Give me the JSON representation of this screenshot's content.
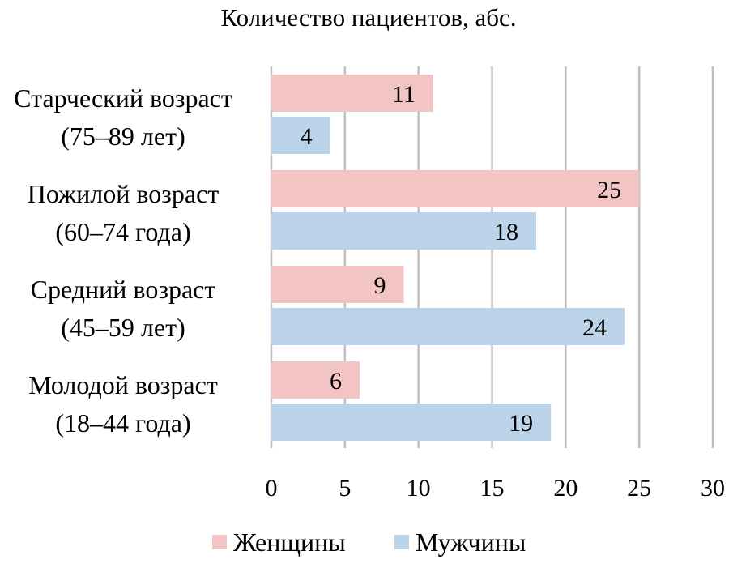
{
  "chart_data": {
    "type": "bar",
    "orientation": "horizontal",
    "title": "Количество пациентов, абс.",
    "categories": [
      [
        "Старческий возраст",
        "(75–89 лет)"
      ],
      [
        "Пожилой возраст",
        "(60–74 года)"
      ],
      [
        "Средний возраст",
        "(45–59 лет)"
      ],
      [
        "Молодой возраст",
        "(18–44 года)"
      ]
    ],
    "series": [
      {
        "name": "Женщины",
        "color": "#f2c4c4",
        "values": [
          11,
          25,
          9,
          6
        ]
      },
      {
        "name": "Мужчины",
        "color": "#bcd4ea",
        "values": [
          4,
          18,
          24,
          19
        ]
      }
    ],
    "xlim": [
      0,
      30
    ],
    "xticks": [
      0,
      5,
      10,
      15,
      20,
      25,
      30
    ],
    "grid": true,
    "data_labels": true,
    "legend_position": "bottom"
  }
}
